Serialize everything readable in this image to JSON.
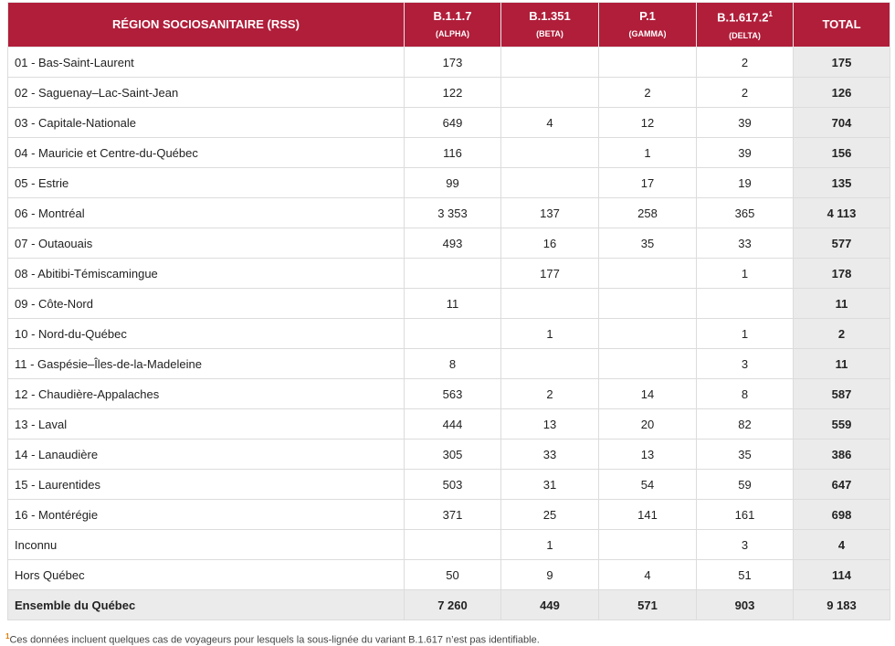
{
  "headers": {
    "region": "RÉGION SOCIOSANITAIRE (RSS)",
    "c1": "B.1.1.7",
    "c1s": "(ALPHA)",
    "c2": "B.1.351",
    "c2s": "(BETA)",
    "c3": "P.1",
    "c3s": "(GAMMA)",
    "c4": "B.1.617.2",
    "c4sup": "1",
    "c4s": "(DELTA)",
    "total": "TOTAL"
  },
  "rows": [
    [
      "01 - Bas-Saint-Laurent",
      "173",
      "",
      "",
      "2",
      "175"
    ],
    [
      "02 - Saguenay–Lac-Saint-Jean",
      "122",
      "",
      "2",
      "2",
      "126"
    ],
    [
      "03 - Capitale-Nationale",
      "649",
      "4",
      "12",
      "39",
      "704"
    ],
    [
      "04 - Mauricie et Centre-du-Québec",
      "116",
      "",
      "1",
      "39",
      "156"
    ],
    [
      "05 - Estrie",
      "99",
      "",
      "17",
      "19",
      "135"
    ],
    [
      "06 - Montréal",
      "3 353",
      "137",
      "258",
      "365",
      "4 113"
    ],
    [
      "07 - Outaouais",
      "493",
      "16",
      "35",
      "33",
      "577"
    ],
    [
      "08 - Abitibi-Témiscamingue",
      "",
      "177",
      "",
      "1",
      "178"
    ],
    [
      "09 - Côte-Nord",
      "11",
      "",
      "",
      "",
      "11"
    ],
    [
      "10 - Nord-du-Québec",
      "",
      "1",
      "",
      "1",
      "2"
    ],
    [
      "11 - Gaspésie–Îles-de-la-Madeleine",
      "8",
      "",
      "",
      "3",
      "11"
    ],
    [
      "12 - Chaudière-Appalaches",
      "563",
      "2",
      "14",
      "8",
      "587"
    ],
    [
      "13 - Laval",
      "444",
      "13",
      "20",
      "82",
      "559"
    ],
    [
      "14 - Lanaudière",
      "305",
      "33",
      "13",
      "35",
      "386"
    ],
    [
      "15 - Laurentides",
      "503",
      "31",
      "54",
      "59",
      "647"
    ],
    [
      "16 - Montérégie",
      "371",
      "25",
      "141",
      "161",
      "698"
    ],
    [
      "Inconnu",
      "",
      "1",
      "",
      "3",
      "4"
    ],
    [
      "Hors Québec",
      "50",
      "9",
      "4",
      "51",
      "114"
    ]
  ],
  "total_row": [
    "Ensemble du Québec",
    "7 260",
    "449",
    "571",
    "903",
    "9 183"
  ],
  "footnote": {
    "mark": "1",
    "text": "Ces données incluent quelques cas de voyageurs pour lesquels la sous-lignée du variant B.1.617 n’est pas identifiable."
  }
}
